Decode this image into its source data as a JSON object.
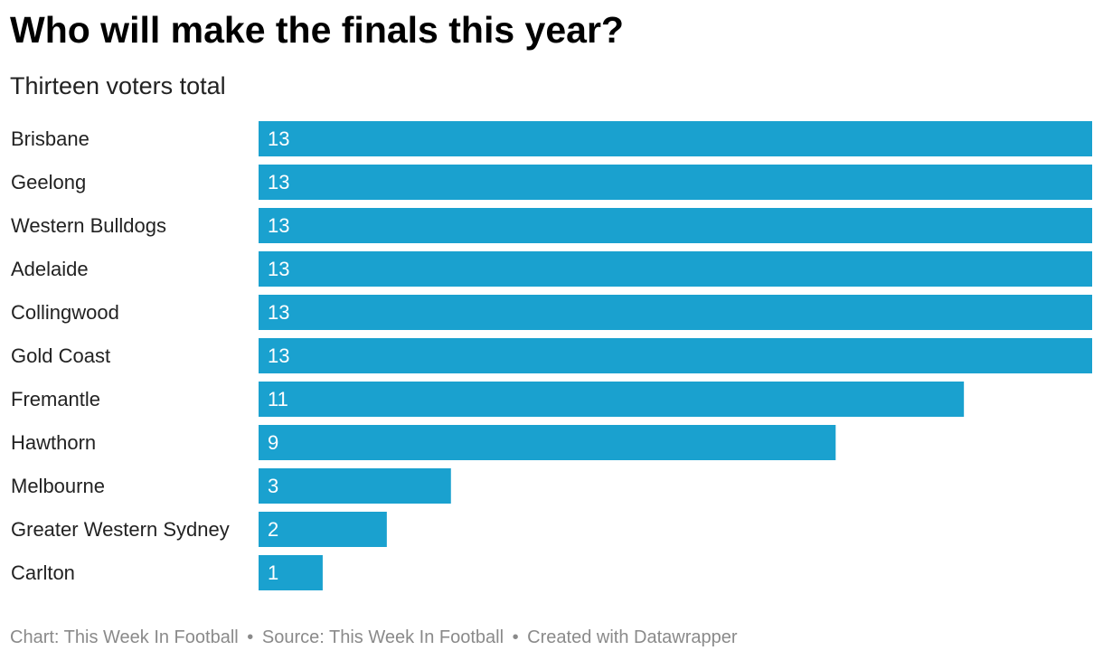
{
  "header": {
    "title": "Who will make the finals this year?",
    "subtitle": "Thirteen voters total"
  },
  "footer": {
    "chart_credit": "Chart: This Week In Football",
    "source": "Source: This Week In Football",
    "created_with": "Created with Datawrapper",
    "separator": "•"
  },
  "colors": {
    "bar": "#1aa1cf"
  },
  "chart_data": {
    "type": "bar",
    "orientation": "horizontal",
    "title": "Who will make the finals this year?",
    "subtitle": "Thirteen voters total",
    "categories": [
      "Brisbane",
      "Geelong",
      "Western Bulldogs",
      "Adelaide",
      "Collingwood",
      "Gold Coast",
      "Fremantle",
      "Hawthorn",
      "Melbourne",
      "Greater Western Sydney",
      "Carlton"
    ],
    "values": [
      13,
      13,
      13,
      13,
      13,
      13,
      11,
      9,
      3,
      2,
      1
    ],
    "xlim": [
      0,
      13
    ],
    "xlabel": "",
    "ylabel": "",
    "grid": false,
    "legend": "none"
  }
}
